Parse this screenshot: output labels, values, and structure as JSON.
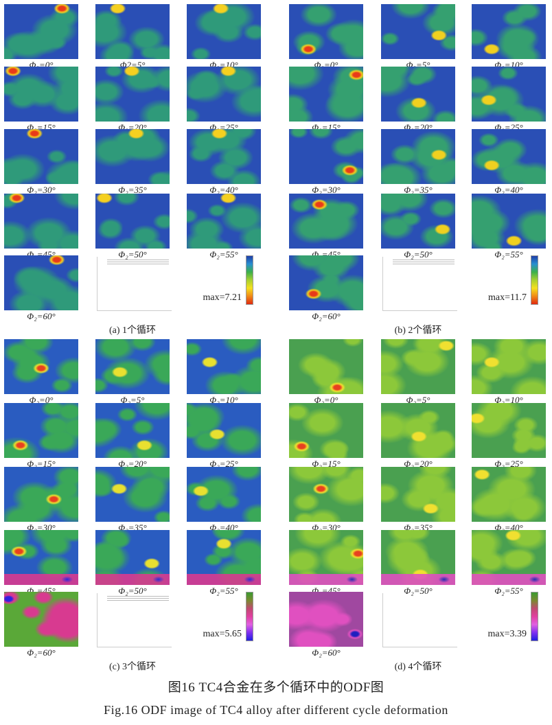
{
  "panels": [
    {
      "id": "a",
      "caption": "(a)  1个循环",
      "max": "max=7.21",
      "labels": [
        "Φ₂=0°",
        "Φ2=5°",
        "Φ₂=10°",
        "Φ₂=15°",
        "Φ₂=20°",
        "Φ₂=25°",
        "Φ₂=30°",
        "Φ₂=35°",
        "Φ₂=40°",
        "Φ₂=45°",
        "Φ₂=50°",
        "Φ₂=55°",
        "Φ₂=60°"
      ],
      "colors": {
        "base": "#2a4fb5",
        "mid": "#2f9a7a",
        "hot": "#e83a1a",
        "warm": "#f5d020"
      },
      "colorbar": [
        "#1f3fa8",
        "#2a8fd0",
        "#3cb04a",
        "#a8d030",
        "#f5e020",
        "#f08a18",
        "#e02a10"
      ]
    },
    {
      "id": "b",
      "caption": "(b)  2个循环",
      "max": "max=11.7",
      "labels": [
        "Φ₂=0°",
        "Φ₂=5°",
        "Φ₂=10°",
        "Φ₂=15°",
        "Φ₂=20°",
        "Φ₂=25°",
        "Φ₂=30°",
        "Φ₂=35°",
        "Φ₂=40°",
        "Φ₂=45°",
        "Φ₂=50°",
        "Φ₂=55°",
        "Φ₂=60°"
      ],
      "colors": {
        "base": "#2a4fb5",
        "mid": "#35a070",
        "hot": "#e83a1a",
        "warm": "#f0d020"
      },
      "colorbar": [
        "#1f3fa8",
        "#2a8fd0",
        "#3cb04a",
        "#a8d030",
        "#f5e020",
        "#f08a18",
        "#e02a10"
      ]
    },
    {
      "id": "c",
      "caption": "(c)  3个循环",
      "max": "max=5.65",
      "labels": [
        "Φ₂=0°",
        "Φ₂=5°",
        "Φ₂=10°",
        "Φ₂=15°",
        "Φ₂=20°",
        "Φ₂=25°",
        "Φ₂=30°",
        "Φ₂=35°",
        "Φ₂=40°",
        "Φ₂=45°",
        "Φ₂=50°",
        "Φ₂=55°",
        "Φ₂=60°"
      ],
      "colors": {
        "base": "#2a5cc0",
        "mid": "#3aa858",
        "hot": "#e84020",
        "warm": "#e8e030",
        "alt_base": "#5aa838",
        "alt_hot": "#d83a90",
        "alt_peak": "#3020e0"
      },
      "colorbar": [
        "#3a9a30",
        "#7a8a30",
        "#c04a70",
        "#e040a0",
        "#e060e0",
        "#8030f0",
        "#2020e0"
      ]
    },
    {
      "id": "d",
      "caption": "(d)  4个循环",
      "max": "max=3.39",
      "labels": [
        "Φ₂=0°",
        "Φ₂=5°",
        "Φ₂=10°",
        "Φ₂=15°",
        "Φ₂=20°",
        "Φ₂=25°",
        "Φ₂=30°",
        "Φ₂=35°",
        "Φ₂=40°",
        "Φ₂=45°",
        "Φ₂=50°",
        "Φ₂=55°",
        "Φ₂=60°"
      ],
      "colors": {
        "base": "#4aa050",
        "mid": "#8cc83a",
        "hot": "#e84020",
        "warm": "#f0e030",
        "alt_base": "#a048a0",
        "alt_hot": "#e050c0",
        "alt_peak": "#2020c0"
      },
      "colorbar": [
        "#3a9a30",
        "#7a8a30",
        "#c04a70",
        "#e040a0",
        "#e060e0",
        "#8030f0",
        "#2020e0"
      ]
    }
  ],
  "figure_caption_cn": "图16    TC4合金在多个循环中的ODF图",
  "figure_caption_en": "Fig.16    ODF image of TC4 alloy after different cycle deformation"
}
